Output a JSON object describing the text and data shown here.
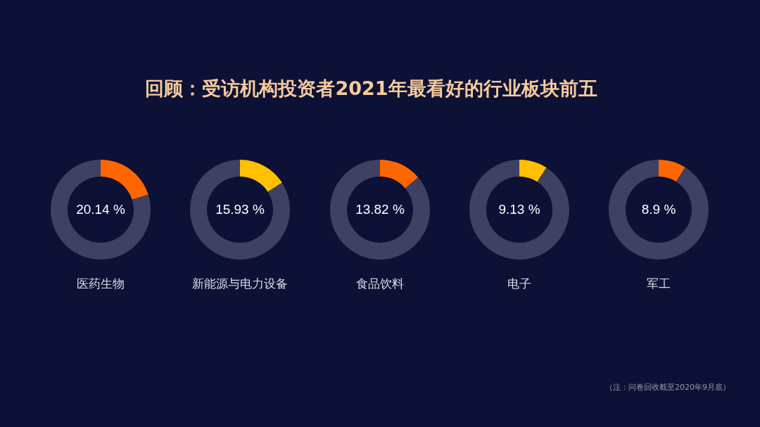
{
  "chart_data": [
    {
      "type": "other",
      "title": "回顾：受访机构投资者2021年最看好的行业板块前五"
    },
    {
      "type": "donut",
      "title": "医药生物",
      "categories": [
        null,
        null
      ],
      "values": [
        20.14,
        79.86
      ],
      "colors": [
        "#ff6600",
        "#3e4162"
      ],
      "value_labels": [
        "20.14 %",
        null
      ]
    },
    {
      "type": "donut",
      "title": "新能源与电力设备",
      "categories": [
        null,
        null
      ],
      "values": [
        15.93,
        84.07
      ],
      "colors": [
        "#ffc000",
        "#3e4162"
      ],
      "value_labels": [
        "15.93 %",
        null
      ]
    },
    {
      "type": "donut",
      "title": "食品饮料",
      "categories": [
        null,
        null
      ],
      "values": [
        13.82,
        86.18
      ],
      "colors": [
        "#ff6600",
        "#3e4162"
      ],
      "value_labels": [
        "13.82 %",
        null
      ]
    },
    {
      "type": "donut",
      "title": "电子",
      "categories": [
        null,
        null
      ],
      "values": [
        9.13,
        90.87
      ],
      "colors": [
        "#ffc000",
        "#3e4162"
      ],
      "value_labels": [
        "9.13 %",
        null
      ]
    },
    {
      "type": "donut",
      "title": "军工",
      "categories": [
        null,
        null
      ],
      "values": [
        8.9,
        91.1
      ],
      "colors": [
        "#ff6600",
        "#3e4162"
      ],
      "value_labels": [
        "8.9 %",
        null
      ]
    },
    {
      "type": "other",
      "annotations": [
        "（注：问卷回收截至2020年9月底）"
      ]
    }
  ]
}
